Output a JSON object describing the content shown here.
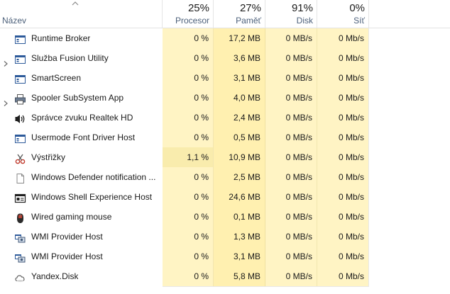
{
  "header": {
    "name_label": "Název",
    "columns": [
      {
        "key": "cpu",
        "percent": "25%",
        "label": "Procesor"
      },
      {
        "key": "mem",
        "percent": "27%",
        "label": "Paměť"
      },
      {
        "key": "disk",
        "percent": "91%",
        "label": "Disk"
      },
      {
        "key": "net",
        "percent": "0%",
        "label": "Síť"
      }
    ],
    "sort_icon": "sort-up-chevron-icon"
  },
  "rows": [
    {
      "name": "Runtime Broker",
      "icon": "app-window-icon",
      "expandable": false,
      "cpu": "0 %",
      "mem": "17,2 MB",
      "disk": "0 MB/s",
      "net": "0 Mb/s"
    },
    {
      "name": "Služba Fusion Utility",
      "icon": "app-window-icon",
      "expandable": true,
      "cpu": "0 %",
      "mem": "3,6 MB",
      "disk": "0 MB/s",
      "net": "0 Mb/s"
    },
    {
      "name": "SmartScreen",
      "icon": "app-window-icon",
      "expandable": false,
      "cpu": "0 %",
      "mem": "3,1 MB",
      "disk": "0 MB/s",
      "net": "0 Mb/s"
    },
    {
      "name": "Spooler SubSystem App",
      "icon": "printer-icon",
      "expandable": true,
      "cpu": "0 %",
      "mem": "4,0 MB",
      "disk": "0 MB/s",
      "net": "0 Mb/s"
    },
    {
      "name": "Správce zvuku Realtek HD",
      "icon": "speaker-icon",
      "expandable": false,
      "cpu": "0 %",
      "mem": "2,4 MB",
      "disk": "0 MB/s",
      "net": "0 Mb/s"
    },
    {
      "name": "Usermode Font Driver Host",
      "icon": "app-window-icon",
      "expandable": false,
      "cpu": "0 %",
      "mem": "0,5 MB",
      "disk": "0 MB/s",
      "net": "0 Mb/s"
    },
    {
      "name": "Výstřižky",
      "icon": "scissors-icon",
      "expandable": false,
      "cpu": "1,1 %",
      "mem": "10,9 MB",
      "disk": "0 MB/s",
      "net": "0 Mb/s",
      "hot": true
    },
    {
      "name": "Windows Defender notification ...",
      "icon": "document-icon",
      "expandable": false,
      "cpu": "0 %",
      "mem": "2,5 MB",
      "disk": "0 MB/s",
      "net": "0 Mb/s"
    },
    {
      "name": "Windows Shell Experience Host",
      "icon": "shell-window-icon",
      "expandable": false,
      "cpu": "0 %",
      "mem": "24,6 MB",
      "disk": "0 MB/s",
      "net": "0 Mb/s"
    },
    {
      "name": "Wired gaming mouse",
      "icon": "mouse-icon",
      "expandable": false,
      "cpu": "0 %",
      "mem": "0,1 MB",
      "disk": "0 MB/s",
      "net": "0 Mb/s"
    },
    {
      "name": "WMI Provider Host",
      "icon": "wmi-icon",
      "expandable": false,
      "cpu": "0 %",
      "mem": "1,3 MB",
      "disk": "0 MB/s",
      "net": "0 Mb/s"
    },
    {
      "name": "WMI Provider Host",
      "icon": "wmi-icon",
      "expandable": false,
      "cpu": "0 %",
      "mem": "3,1 MB",
      "disk": "0 MB/s",
      "net": "0 Mb/s"
    },
    {
      "name": "Yandex.Disk",
      "icon": "cloud-disk-icon",
      "expandable": false,
      "cpu": "0 %",
      "mem": "5,8 MB",
      "disk": "0 MB/s",
      "net": "0 Mb/s"
    }
  ],
  "colors": {
    "heat_light": "#fff4c4",
    "heat_mid": "#fff0b0",
    "heat_hot": "#f9ecad",
    "header_label": "#4c607a"
  }
}
